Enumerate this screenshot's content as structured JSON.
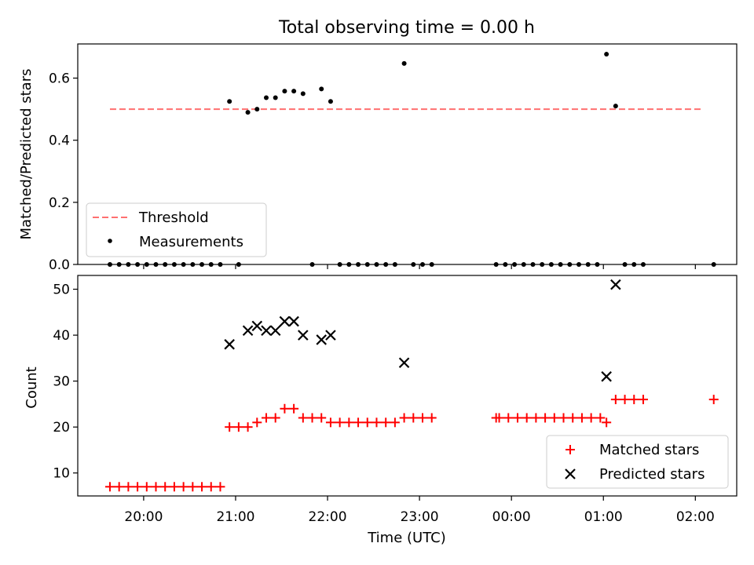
{
  "title": "Total observing time = 0.00 h",
  "colors": {
    "threshold": "#ff7070",
    "measurement": "#000000",
    "matched": "#ff0000",
    "predicted": "#000000"
  },
  "chart_data": [
    {
      "type": "scatter",
      "title": "Total observing time = 0.00 h",
      "xlabel": "",
      "ylabel": "Matched/Predicted stars",
      "xlim": [
        "19:17",
        "02:27"
      ],
      "ylim": [
        0,
        0.71
      ],
      "yticks": [
        "0.0",
        "0.2",
        "0.4",
        "0.6"
      ],
      "grid": false,
      "legend": {
        "placement": "lower-left",
        "entries": [
          "Threshold",
          "Measurements"
        ]
      },
      "series": [
        {
          "name": "Threshold",
          "kind": "dashed-line",
          "points": [
            {
              "x": "19:38",
              "y": 0.5
            },
            {
              "x": "02:05",
              "y": 0.5
            }
          ]
        },
        {
          "name": "Measurements",
          "kind": "dots",
          "points": [
            {
              "x": "19:38",
              "y": 0
            },
            {
              "x": "19:44",
              "y": 0
            },
            {
              "x": "19:50",
              "y": 0
            },
            {
              "x": "19:56",
              "y": 0
            },
            {
              "x": "20:02",
              "y": 0
            },
            {
              "x": "20:08",
              "y": 0
            },
            {
              "x": "20:14",
              "y": 0
            },
            {
              "x": "20:20",
              "y": 0
            },
            {
              "x": "20:26",
              "y": 0
            },
            {
              "x": "20:32",
              "y": 0
            },
            {
              "x": "20:38",
              "y": 0
            },
            {
              "x": "20:44",
              "y": 0
            },
            {
              "x": "20:50",
              "y": 0
            },
            {
              "x": "20:56",
              "y": 0.525
            },
            {
              "x": "21:02",
              "y": 0
            },
            {
              "x": "21:08",
              "y": 0.49
            },
            {
              "x": "21:14",
              "y": 0.5
            },
            {
              "x": "21:20",
              "y": 0.537
            },
            {
              "x": "21:26",
              "y": 0.537
            },
            {
              "x": "21:32",
              "y": 0.558
            },
            {
              "x": "21:38",
              "y": 0.558
            },
            {
              "x": "21:44",
              "y": 0.55
            },
            {
              "x": "21:50",
              "y": 0
            },
            {
              "x": "21:56",
              "y": 0.565
            },
            {
              "x": "22:02",
              "y": 0.525
            },
            {
              "x": "22:08",
              "y": 0
            },
            {
              "x": "22:14",
              "y": 0
            },
            {
              "x": "22:20",
              "y": 0
            },
            {
              "x": "22:26",
              "y": 0
            },
            {
              "x": "22:32",
              "y": 0
            },
            {
              "x": "22:38",
              "y": 0
            },
            {
              "x": "22:44",
              "y": 0
            },
            {
              "x": "22:50",
              "y": 0.647
            },
            {
              "x": "22:56",
              "y": 0
            },
            {
              "x": "23:02",
              "y": 0
            },
            {
              "x": "23:08",
              "y": 0
            },
            {
              "x": "23:50",
              "y": 0
            },
            {
              "x": "23:56",
              "y": 0
            },
            {
              "x": "00:02",
              "y": 0
            },
            {
              "x": "00:08",
              "y": 0
            },
            {
              "x": "00:14",
              "y": 0
            },
            {
              "x": "00:20",
              "y": 0
            },
            {
              "x": "00:26",
              "y": 0
            },
            {
              "x": "00:32",
              "y": 0
            },
            {
              "x": "00:38",
              "y": 0
            },
            {
              "x": "00:44",
              "y": 0
            },
            {
              "x": "00:50",
              "y": 0
            },
            {
              "x": "00:56",
              "y": 0
            },
            {
              "x": "01:02",
              "y": 0.677
            },
            {
              "x": "01:08",
              "y": 0.51
            },
            {
              "x": "01:14",
              "y": 0
            },
            {
              "x": "01:20",
              "y": 0
            },
            {
              "x": "01:26",
              "y": 0
            },
            {
              "x": "02:12",
              "y": 0
            }
          ]
        }
      ]
    },
    {
      "type": "scatter",
      "xlabel": "Time (UTC)",
      "ylabel": "Count",
      "xlim": [
        "19:17",
        "02:27"
      ],
      "xticks": [
        "20:00",
        "21:00",
        "22:00",
        "23:00",
        "00:00",
        "01:00",
        "02:00"
      ],
      "ylim": [
        5,
        53
      ],
      "yticks": [
        "10",
        "20",
        "30",
        "40",
        "50"
      ],
      "grid": false,
      "legend": {
        "placement": "lower-right",
        "entries": [
          "Matched stars",
          "Predicted stars"
        ]
      },
      "series": [
        {
          "name": "Matched stars",
          "marker": "plus",
          "points": [
            {
              "x": "19:38",
              "y": 7
            },
            {
              "x": "19:44",
              "y": 7
            },
            {
              "x": "19:50",
              "y": 7
            },
            {
              "x": "19:56",
              "y": 7
            },
            {
              "x": "20:02",
              "y": 7
            },
            {
              "x": "20:08",
              "y": 7
            },
            {
              "x": "20:14",
              "y": 7
            },
            {
              "x": "20:20",
              "y": 7
            },
            {
              "x": "20:26",
              "y": 7
            },
            {
              "x": "20:32",
              "y": 7
            },
            {
              "x": "20:38",
              "y": 7
            },
            {
              "x": "20:44",
              "y": 7
            },
            {
              "x": "20:50",
              "y": 7
            },
            {
              "x": "20:56",
              "y": 20
            },
            {
              "x": "21:02",
              "y": 20
            },
            {
              "x": "21:08",
              "y": 20
            },
            {
              "x": "21:14",
              "y": 21
            },
            {
              "x": "21:20",
              "y": 22
            },
            {
              "x": "21:26",
              "y": 22
            },
            {
              "x": "21:32",
              "y": 24
            },
            {
              "x": "21:38",
              "y": 24
            },
            {
              "x": "21:44",
              "y": 22
            },
            {
              "x": "21:50",
              "y": 22
            },
            {
              "x": "21:56",
              "y": 22
            },
            {
              "x": "22:02",
              "y": 21
            },
            {
              "x": "22:08",
              "y": 21
            },
            {
              "x": "22:14",
              "y": 21
            },
            {
              "x": "22:20",
              "y": 21
            },
            {
              "x": "22:26",
              "y": 21
            },
            {
              "x": "22:32",
              "y": 21
            },
            {
              "x": "22:38",
              "y": 21
            },
            {
              "x": "22:44",
              "y": 21
            },
            {
              "x": "22:50",
              "y": 22
            },
            {
              "x": "22:56",
              "y": 22
            },
            {
              "x": "23:02",
              "y": 22
            },
            {
              "x": "23:08",
              "y": 22
            },
            {
              "x": "23:50",
              "y": 22
            },
            {
              "x": "23:52",
              "y": 22
            },
            {
              "x": "23:58",
              "y": 22
            },
            {
              "x": "00:04",
              "y": 22
            },
            {
              "x": "00:10",
              "y": 22
            },
            {
              "x": "00:16",
              "y": 22
            },
            {
              "x": "00:22",
              "y": 22
            },
            {
              "x": "00:28",
              "y": 22
            },
            {
              "x": "00:34",
              "y": 22
            },
            {
              "x": "00:40",
              "y": 22
            },
            {
              "x": "00:46",
              "y": 22
            },
            {
              "x": "00:52",
              "y": 22
            },
            {
              "x": "00:58",
              "y": 22
            },
            {
              "x": "01:02",
              "y": 21
            },
            {
              "x": "01:08",
              "y": 26
            },
            {
              "x": "01:14",
              "y": 26
            },
            {
              "x": "01:20",
              "y": 26
            },
            {
              "x": "01:26",
              "y": 26
            },
            {
              "x": "02:12",
              "y": 26
            }
          ]
        },
        {
          "name": "Predicted stars",
          "marker": "x",
          "points": [
            {
              "x": "20:56",
              "y": 38
            },
            {
              "x": "21:08",
              "y": 41
            },
            {
              "x": "21:14",
              "y": 42
            },
            {
              "x": "21:20",
              "y": 41
            },
            {
              "x": "21:26",
              "y": 41
            },
            {
              "x": "21:32",
              "y": 43
            },
            {
              "x": "21:38",
              "y": 43
            },
            {
              "x": "21:44",
              "y": 40
            },
            {
              "x": "21:56",
              "y": 39
            },
            {
              "x": "22:02",
              "y": 40
            },
            {
              "x": "22:50",
              "y": 34
            },
            {
              "x": "01:02",
              "y": 31
            },
            {
              "x": "01:08",
              "y": 51
            }
          ]
        }
      ]
    }
  ]
}
